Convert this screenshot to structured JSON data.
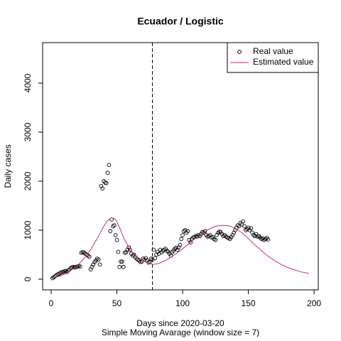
{
  "chart_data": {
    "type": "scatter",
    "title": "Ecuador / Logistic",
    "x_label": "Days since 2020-03-20",
    "subtitle": "Simple Moving Avarage (window size = 7)",
    "y_label": "Daily cases",
    "xlim": [
      -6.5,
      203.2
    ],
    "ylim": [
      -217,
      4826
    ],
    "xticks": [
      0,
      50,
      100,
      150,
      200
    ],
    "yticks": [
      0,
      1000,
      2000,
      3000,
      4000
    ],
    "vline": 77,
    "legend": "topright",
    "series": [
      {
        "name": "Real value",
        "type": "scatter",
        "color": "#000000",
        "x": [
          1,
          2,
          3,
          4,
          5,
          6,
          7,
          8,
          9,
          10,
          11,
          12,
          13,
          14,
          15,
          16,
          17,
          18,
          19,
          20,
          21,
          22,
          23,
          24,
          25,
          26,
          27,
          28,
          29,
          30,
          31,
          32,
          33,
          34,
          35,
          36,
          37,
          38,
          39,
          40,
          41,
          42,
          43,
          44,
          45,
          46,
          47,
          48,
          49,
          50,
          51,
          52,
          53,
          54,
          55,
          56,
          57,
          58,
          59,
          60,
          61,
          62,
          63,
          64,
          65,
          66,
          67,
          68,
          69,
          70,
          71,
          72,
          73,
          74,
          75,
          76,
          77,
          78,
          79,
          80,
          81,
          82,
          83,
          84,
          85,
          86,
          87,
          88,
          89,
          90,
          91,
          92,
          93,
          94,
          95,
          96,
          97,
          98,
          99,
          100,
          101,
          102,
          103,
          104,
          105,
          106,
          107,
          108,
          109,
          110,
          111,
          112,
          113,
          114,
          115,
          116,
          117,
          118,
          119,
          120,
          121,
          122,
          123,
          124,
          125,
          126,
          127,
          128,
          129,
          130,
          131,
          132,
          133,
          134,
          135,
          136,
          137,
          138,
          139,
          140,
          141,
          142,
          143,
          144,
          145,
          146,
          147,
          148,
          149,
          150,
          151,
          152,
          153,
          154,
          155,
          156,
          157,
          158,
          159,
          160,
          161,
          162,
          163,
          164,
          165
        ],
        "values": [
          20,
          40,
          60,
          80,
          100,
          110,
          130,
          140,
          150,
          160,
          170,
          150,
          180,
          200,
          230,
          240,
          250,
          240,
          250,
          260,
          270,
          260,
          540,
          550,
          540,
          520,
          500,
          480,
          460,
          200,
          250,
          300,
          350,
          380,
          420,
          400,
          300,
          1900,
          1850,
          2000,
          1970,
          1960,
          2170,
          2330,
          980,
          1220,
          1080,
          1100,
          900,
          800,
          560,
          250,
          360,
          360,
          250,
          540,
          550,
          600,
          650,
          600,
          520,
          480,
          500,
          450,
          420,
          400,
          380,
          350,
          360,
          420,
          400,
          430,
          380,
          340,
          350,
          420,
          400,
          600,
          430,
          500,
          560,
          520,
          600,
          550,
          580,
          600,
          620,
          580,
          560,
          520,
          480,
          550,
          580,
          620,
          640,
          600,
          650,
          700,
          820,
          900,
          980,
          1000,
          950,
          980,
          800,
          750,
          820,
          850,
          860,
          880,
          870,
          900,
          880,
          920,
          960,
          950,
          980,
          900,
          870,
          880,
          900,
          850,
          860,
          820,
          800,
          900,
          950,
          970,
          960,
          920,
          880,
          900,
          870,
          850,
          840,
          820,
          860,
          900,
          950,
          1000,
          1050,
          1100,
          1080,
          1150,
          1120,
          1180,
          1080,
          1000,
          1020,
          1050,
          1000,
          1040,
          950,
          900,
          880,
          920,
          870,
          880,
          850,
          820,
          830,
          800,
          820,
          840,
          810
        ]
      },
      {
        "name": "Estimated value",
        "type": "line",
        "color": "#c8325e",
        "x": [
          0,
          5,
          10,
          15,
          20,
          25,
          30,
          35,
          40,
          43,
          46,
          49,
          52,
          55,
          60,
          65,
          70,
          75,
          78,
          82,
          86,
          90,
          95,
          100,
          105,
          110,
          115,
          120,
          125,
          131,
          135,
          140,
          145,
          150,
          155,
          160,
          165,
          170,
          175,
          180,
          185,
          190,
          196
        ],
        "values": [
          20,
          50,
          100,
          180,
          280,
          420,
          600,
          830,
          1080,
          1200,
          1260,
          1220,
          1060,
          850,
          600,
          460,
          380,
          320,
          300,
          320,
          370,
          430,
          520,
          620,
          730,
          840,
          940,
          1020,
          1080,
          1100,
          1090,
          1040,
          950,
          830,
          700,
          580,
          470,
          380,
          300,
          240,
          190,
          150,
          120
        ]
      }
    ]
  }
}
